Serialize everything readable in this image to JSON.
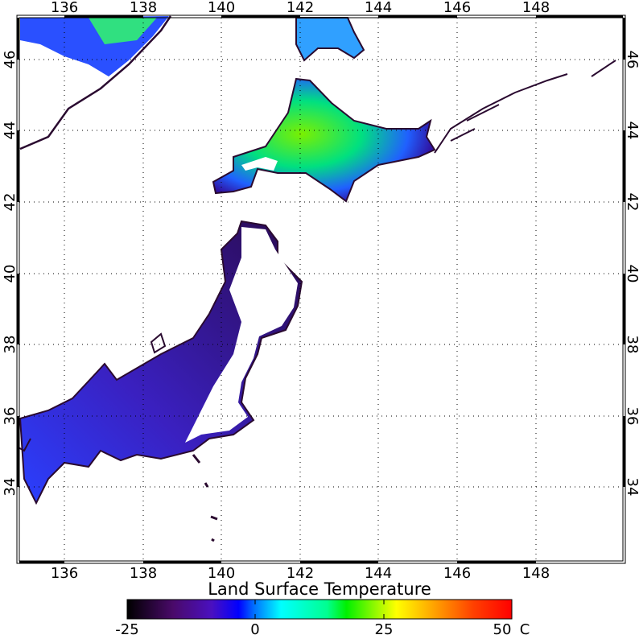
{
  "map": {
    "title": "Land Surface Temperature",
    "lon_ticks": [
      "136",
      "138",
      "140",
      "142",
      "144",
      "146",
      "148"
    ],
    "lat_ticks": [
      "46",
      "44",
      "42",
      "40",
      "38",
      "36",
      "34"
    ],
    "lon_range": [
      134.8,
      150.3
    ],
    "lat_range": [
      31.9,
      47.2
    ],
    "grid": "dotted",
    "coastline_color": "#2a0a30"
  },
  "colorbar": {
    "ticks": [
      "-25",
      "0",
      "25",
      "50"
    ],
    "unit": "C",
    "range": [
      -25,
      50
    ],
    "colors": [
      "#000000",
      "#5a0a7a",
      "#3a10d0",
      "#0000ff",
      "#0090ff",
      "#00ffff",
      "#00ff80",
      "#00ff00",
      "#ffff00",
      "#ff8000",
      "#ff0000"
    ]
  }
}
